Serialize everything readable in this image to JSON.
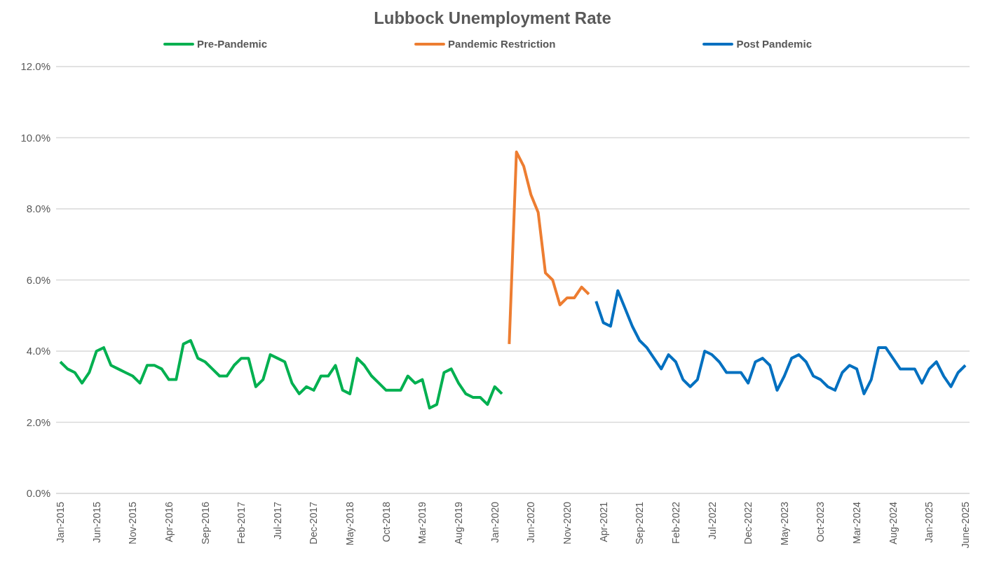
{
  "chart_data": {
    "type": "line",
    "title": "Lubbock Unemployment Rate",
    "categories": [
      "Jan-2015",
      null,
      null,
      null,
      null,
      "Jun-2015",
      null,
      null,
      null,
      null,
      "Nov-2015",
      null,
      null,
      null,
      null,
      "Apr-2016",
      null,
      null,
      null,
      null,
      "Sep-2016",
      null,
      null,
      null,
      null,
      "Feb-2017",
      null,
      null,
      null,
      null,
      "Jul-2017",
      null,
      null,
      null,
      null,
      "Dec-2017",
      null,
      null,
      null,
      null,
      "May-2018",
      null,
      null,
      null,
      null,
      "Oct-2018",
      null,
      null,
      null,
      null,
      "Mar-2019",
      null,
      null,
      null,
      null,
      "Aug-2019",
      null,
      null,
      null,
      null,
      "Jan-2020",
      null,
      null,
      null,
      null,
      "Jun-2020",
      null,
      null,
      null,
      null,
      "Nov-2020",
      null,
      null,
      null,
      null,
      "Apr-2021",
      null,
      null,
      null,
      null,
      "Sep-2021",
      null,
      null,
      null,
      null,
      "Feb-2022",
      null,
      null,
      null,
      null,
      "Jul-2022",
      null,
      null,
      null,
      null,
      "Dec-2022",
      null,
      null,
      null,
      null,
      "May-2023",
      null,
      null,
      null,
      null,
      "Oct-2023",
      null,
      null,
      null,
      null,
      "Mar-2024",
      null,
      null,
      null,
      null,
      "Aug-2024",
      null,
      null,
      null,
      null,
      "Jan-2025",
      null,
      null,
      null,
      null,
      "June-2025"
    ],
    "series": [
      {
        "name": "Pre-Pandemic",
        "color": "#00b050",
        "values": [
          3.7,
          3.5,
          3.4,
          3.1,
          3.4,
          4.0,
          4.1,
          3.6,
          3.5,
          3.4,
          3.3,
          3.1,
          3.6,
          3.6,
          3.5,
          3.2,
          3.2,
          4.2,
          4.3,
          3.8,
          3.7,
          3.5,
          3.3,
          3.3,
          3.6,
          3.8,
          3.8,
          3.0,
          3.2,
          3.9,
          3.8,
          3.7,
          3.1,
          2.8,
          3.0,
          2.9,
          3.3,
          3.3,
          3.6,
          2.9,
          2.8,
          3.8,
          3.6,
          3.3,
          3.1,
          2.9,
          2.9,
          2.9,
          3.3,
          3.1,
          3.2,
          2.4,
          2.5,
          3.4,
          3.5,
          3.1,
          2.8,
          2.7,
          2.7,
          2.5,
          3.0,
          2.8,
          null,
          null,
          null,
          null,
          null,
          null,
          null,
          null,
          null,
          null,
          null,
          null,
          null,
          null,
          null,
          null,
          null,
          null,
          null,
          null,
          null,
          null,
          null,
          null,
          null,
          null,
          null,
          null,
          null,
          null,
          null,
          null,
          null,
          null,
          null,
          null,
          null,
          null,
          null,
          null,
          null,
          null,
          null,
          null,
          null,
          null,
          null,
          null,
          null,
          null,
          null,
          null,
          null,
          null,
          null,
          null,
          null,
          null,
          null,
          null,
          null,
          null,
          null,
          null
        ]
      },
      {
        "name": "Pandemic Restriction",
        "color": "#ed7d31",
        "values": [
          null,
          null,
          null,
          null,
          null,
          null,
          null,
          null,
          null,
          null,
          null,
          null,
          null,
          null,
          null,
          null,
          null,
          null,
          null,
          null,
          null,
          null,
          null,
          null,
          null,
          null,
          null,
          null,
          null,
          null,
          null,
          null,
          null,
          null,
          null,
          null,
          null,
          null,
          null,
          null,
          null,
          null,
          null,
          null,
          null,
          null,
          null,
          null,
          null,
          null,
          null,
          null,
          null,
          null,
          null,
          null,
          null,
          null,
          null,
          null,
          null,
          null,
          4.2,
          9.6,
          9.2,
          8.4,
          7.9,
          6.2,
          6.0,
          5.3,
          5.5,
          5.5,
          5.8,
          5.6,
          null,
          null,
          null,
          null,
          null,
          null,
          null,
          null,
          null,
          null,
          null,
          null,
          null,
          null,
          null,
          null,
          null,
          null,
          null,
          null,
          null,
          null,
          null,
          null,
          null,
          null,
          null,
          null,
          null,
          null,
          null,
          null,
          null,
          null,
          null,
          null,
          null,
          null,
          null,
          null,
          null,
          null,
          null,
          null,
          null,
          null,
          null,
          null,
          null,
          null,
          null,
          null
        ]
      },
      {
        "name": "Post Pandemic",
        "color": "#0070c0",
        "values": [
          null,
          null,
          null,
          null,
          null,
          null,
          null,
          null,
          null,
          null,
          null,
          null,
          null,
          null,
          null,
          null,
          null,
          null,
          null,
          null,
          null,
          null,
          null,
          null,
          null,
          null,
          null,
          null,
          null,
          null,
          null,
          null,
          null,
          null,
          null,
          null,
          null,
          null,
          null,
          null,
          null,
          null,
          null,
          null,
          null,
          null,
          null,
          null,
          null,
          null,
          null,
          null,
          null,
          null,
          null,
          null,
          null,
          null,
          null,
          null,
          null,
          null,
          null,
          null,
          null,
          null,
          null,
          null,
          null,
          null,
          null,
          null,
          null,
          null,
          5.4,
          4.8,
          4.7,
          5.7,
          5.2,
          4.7,
          4.3,
          4.1,
          3.8,
          3.5,
          3.9,
          3.7,
          3.2,
          3.0,
          3.2,
          4.0,
          3.9,
          3.7,
          3.4,
          3.4,
          3.4,
          3.1,
          3.7,
          3.8,
          3.6,
          2.9,
          3.3,
          3.8,
          3.9,
          3.7,
          3.3,
          3.2,
          3.0,
          2.9,
          3.4,
          3.6,
          3.5,
          2.8,
          3.2,
          4.1,
          4.1,
          3.8,
          3.5,
          3.5,
          3.5,
          3.1,
          3.5,
          3.7,
          3.3,
          3.0,
          3.4,
          3.6
        ]
      }
    ],
    "ylim": [
      0,
      12
    ],
    "yticks": [
      {
        "value": 0,
        "label": "0.0%"
      },
      {
        "value": 2,
        "label": "2.0%"
      },
      {
        "value": 4,
        "label": "4.0%"
      },
      {
        "value": 6,
        "label": "6.0%"
      },
      {
        "value": 8,
        "label": "8.0%"
      },
      {
        "value": 10,
        "label": "10.0%"
      },
      {
        "value": 12,
        "label": "12.0%"
      }
    ],
    "grid": "y",
    "legend": "top",
    "marker": "none",
    "line_style": "solid"
  }
}
